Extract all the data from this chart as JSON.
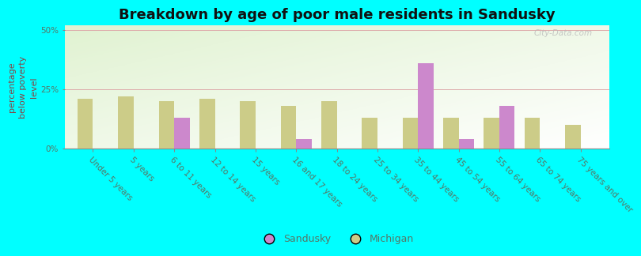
{
  "title": "Breakdown by age of poor male residents in Sandusky",
  "ylabel": "percentage\nbelow poverty\nlevel",
  "categories": [
    "Under 5 years",
    "5 years",
    "6 to 11 years",
    "12 to 14 years",
    "15 years",
    "16 and 17 years",
    "18 to 24 years",
    "25 to 34 years",
    "35 to 44 years",
    "45 to 54 years",
    "55 to 64 years",
    "65 to 74 years",
    "75 years and over"
  ],
  "sandusky_values": [
    0,
    0,
    13,
    0,
    0,
    4,
    0,
    0,
    36,
    4,
    18,
    0,
    0
  ],
  "michigan_values": [
    21,
    22,
    20,
    21,
    20,
    18,
    20,
    13,
    13,
    13,
    13,
    13,
    10
  ],
  "sandusky_color": "#cc88cc",
  "michigan_color": "#cccc88",
  "background_color": "#00ffff",
  "ylim": [
    0,
    52
  ],
  "yticks": [
    0,
    25,
    50
  ],
  "ytick_labels": [
    "0%",
    "25%",
    "50%"
  ],
  "bar_width": 0.38,
  "title_fontsize": 13,
  "axis_label_fontsize": 8,
  "tick_fontsize": 7.5,
  "legend_fontsize": 9,
  "watermark": "City-Data.com",
  "tick_color": "#557766",
  "ylabel_color": "#884444"
}
